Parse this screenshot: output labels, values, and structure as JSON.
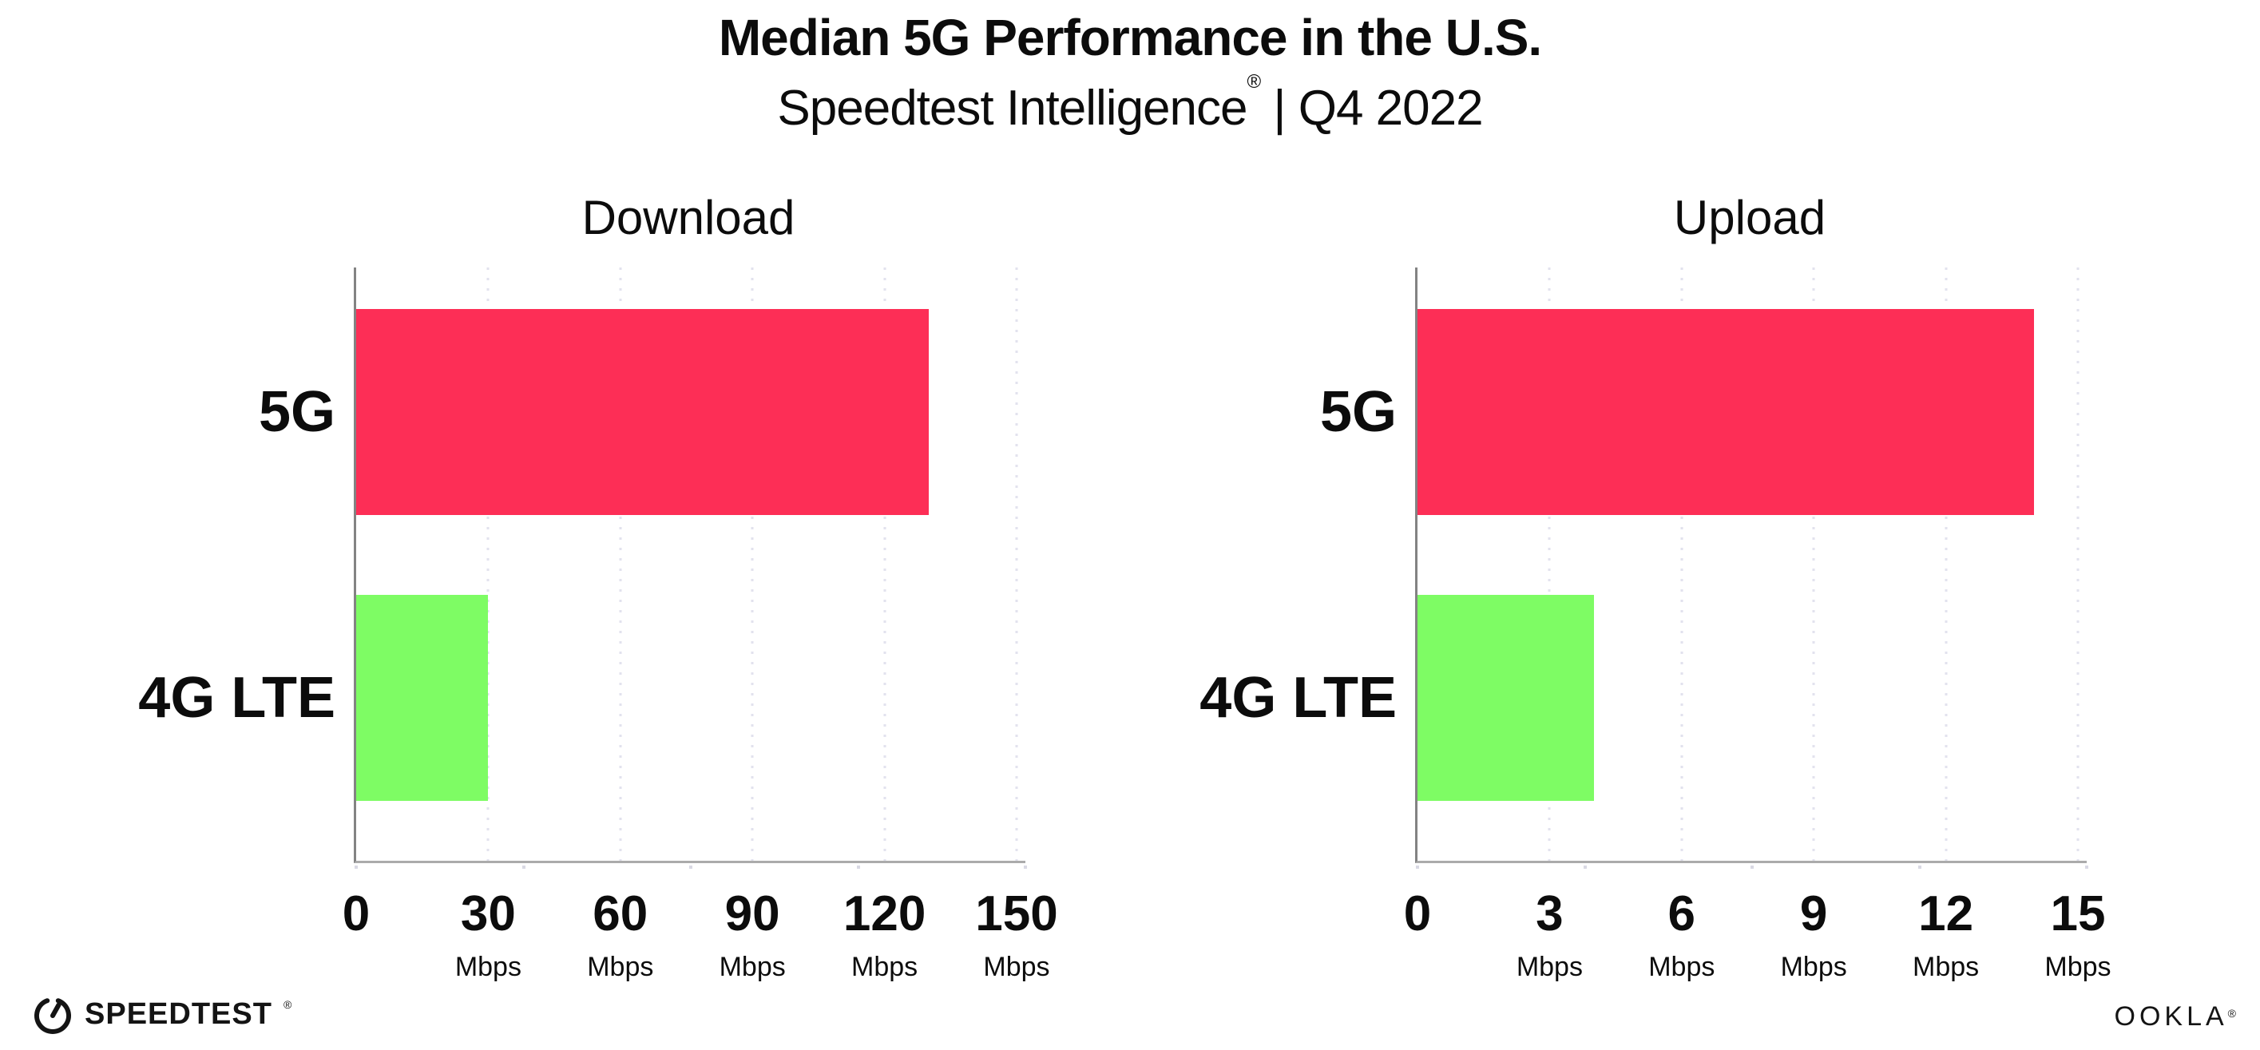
{
  "header": {
    "title": "Median 5G Performance in the U.S.",
    "subtitle_brand": "Speedtest Intelligence",
    "subtitle_reg": "®",
    "subtitle_rest": " | Q4 2022"
  },
  "chart_data": [
    {
      "type": "bar",
      "orientation": "horizontal",
      "title": "Download",
      "categories": [
        "5G",
        "4G LTE"
      ],
      "values": [
        130,
        30
      ],
      "unit": "Mbps",
      "xticks": [
        0,
        30,
        60,
        90,
        120,
        150
      ],
      "xlim": [
        0,
        152
      ],
      "bar_colors": [
        "#fd2e56",
        "#7efc64"
      ],
      "grid": "dotted-vertical-gridlines",
      "legend": "none"
    },
    {
      "type": "bar",
      "orientation": "horizontal",
      "title": "Upload",
      "categories": [
        "5G",
        "4G LTE"
      ],
      "values": [
        14,
        4
      ],
      "unit": "Mbps",
      "xticks": [
        0,
        3,
        6,
        9,
        12,
        15
      ],
      "xlim": [
        0,
        15.2
      ],
      "bar_colors": [
        "#fd2e56",
        "#7efc64"
      ],
      "grid": "dotted-vertical-gridlines",
      "legend": "none"
    }
  ],
  "colors": {
    "bar_5g": "#fd2e56",
    "bar_4g_lte": "#7efc64",
    "x_axis": "#ababab",
    "y_axis": "#838383",
    "gridline_dot": "#e2e2ee",
    "text": "#0c0c0c"
  },
  "footer": {
    "speedtest_icon": "speedtest-gauge-icon",
    "speedtest_wordmark": "SPEEDTEST",
    "speedtest_reg": "®",
    "ookla_wordmark": "OOKLA",
    "ookla_reg": "®"
  }
}
